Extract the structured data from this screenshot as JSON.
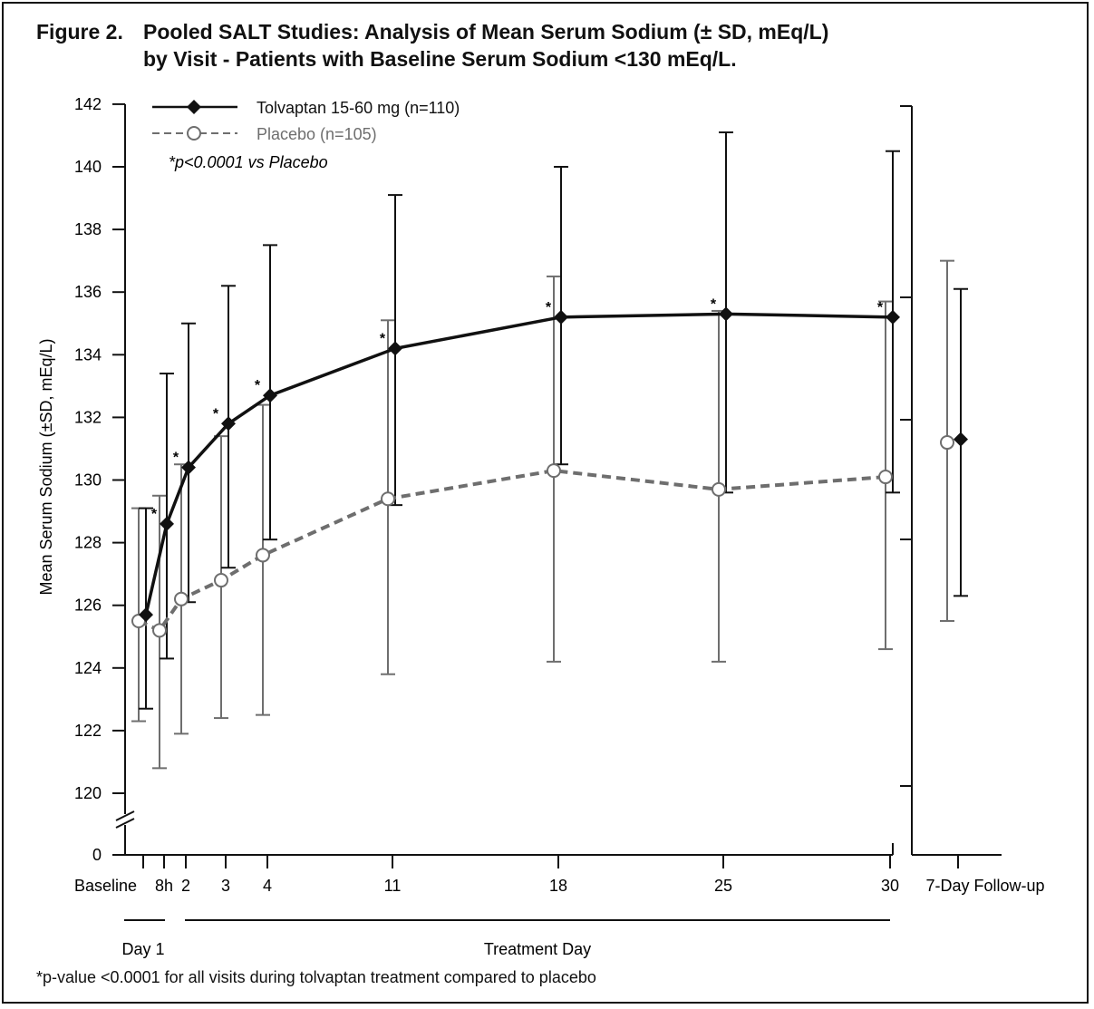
{
  "figure": {
    "prefix": "Figure 2.",
    "title_line1": "Pooled SALT Studies: Analysis of Mean Serum Sodium (± SD, mEq/L)",
    "title_line2": "by Visit - Patients with Baseline Serum Sodium <130 mEq/L.",
    "footnote": "*p-value <0.0001 for all visits during tolvaptan treatment compared to placebo"
  },
  "chart_data": {
    "type": "line",
    "ylabel": "Mean Serum Sodium (±SD, mEq/L)",
    "yticks": [
      0,
      120,
      122,
      124,
      126,
      128,
      130,
      132,
      134,
      136,
      138,
      140,
      142
    ],
    "ylim": [
      120,
      142
    ],
    "axis_break": true,
    "categories": [
      "Baseline",
      "8h",
      "2",
      "3",
      "4",
      "11",
      "18",
      "25",
      "30",
      "7-Day Follow-up"
    ],
    "group_labels": [
      "Day 1",
      "Treatment Day"
    ],
    "legend_note": "*p<0.0001 vs Placebo",
    "significance_marker": "*",
    "series": [
      {
        "name": "Tolvaptan 15-60 mg (n=110)",
        "color": "#111111",
        "marker": "filled-diamond",
        "line": "solid",
        "means": [
          125.7,
          128.6,
          130.4,
          131.8,
          132.7,
          134.2,
          135.2,
          135.3,
          135.2,
          131.3
        ],
        "sd_low": [
          122.7,
          124.3,
          126.1,
          127.2,
          128.1,
          129.2,
          130.5,
          129.6,
          129.6,
          126.3
        ],
        "sd_high": [
          129.1,
          133.4,
          135.0,
          136.2,
          137.5,
          139.1,
          140.0,
          141.1,
          140.5,
          136.1
        ],
        "significant": [
          false,
          true,
          true,
          true,
          true,
          true,
          true,
          true,
          true,
          false
        ]
      },
      {
        "name": "Placebo (n=105)",
        "color": "#6e6e6e",
        "marker": "open-circle",
        "line": "dashed",
        "means": [
          125.5,
          125.2,
          126.2,
          126.8,
          127.6,
          129.4,
          130.3,
          129.7,
          130.1,
          131.2
        ],
        "sd_low": [
          122.3,
          120.8,
          121.9,
          122.4,
          122.5,
          123.8,
          124.2,
          124.2,
          124.6,
          125.5
        ],
        "sd_high": [
          129.1,
          129.5,
          130.5,
          131.4,
          132.4,
          135.1,
          136.5,
          135.4,
          135.7,
          137.0
        ]
      }
    ]
  }
}
